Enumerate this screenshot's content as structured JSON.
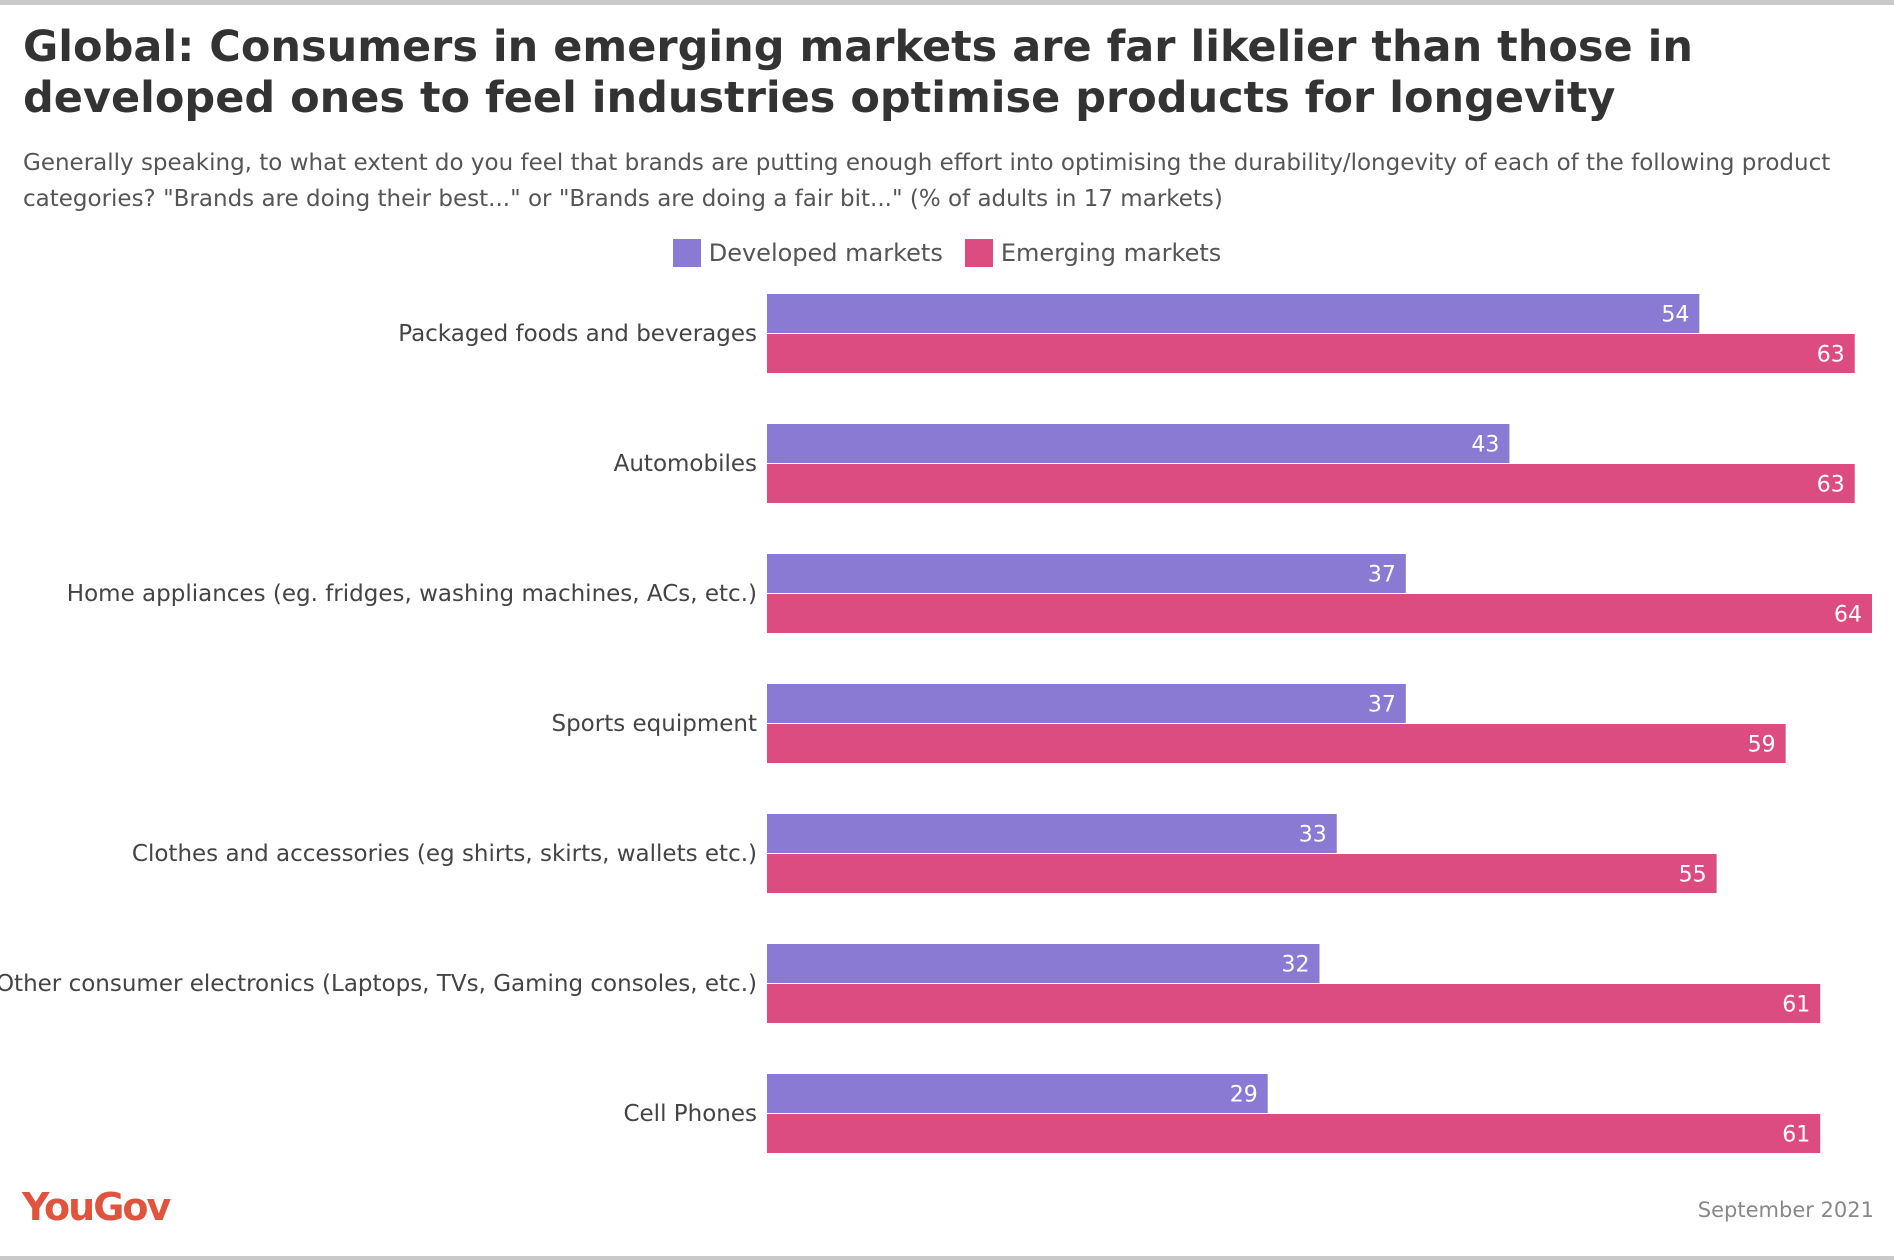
{
  "colors": {
    "developed": "#8A7AD4",
    "emerging": "#DC4C80",
    "logo": "#E0533D"
  },
  "header": {
    "title": "Global: Consumers in emerging markets are far likelier than those in developed ones to feel industries optimise products for longevity",
    "subtitle": "Generally speaking, to what extent do you feel that brands are putting enough effort into optimising the durability/longevity of each of the following product categories? \"Brands are doing their best...\" or \"Brands are doing a fair bit...\" (% of adults in 17 markets)"
  },
  "legend": {
    "developed_label": "Developed markets",
    "emerging_label": "Emerging markets"
  },
  "footer": {
    "logo_text": "YouGov",
    "date": "September 2021"
  },
  "chart_data": {
    "type": "bar",
    "orientation": "horizontal",
    "categories": [
      "Packaged foods and beverages",
      "Automobiles",
      "Home appliances (eg. fridges, washing machines, ACs, etc.)",
      "Sports equipment",
      "Clothes and accessories (eg shirts, skirts, wallets etc.)",
      "Other consumer electronics (Laptops, TVs, Gaming consoles, etc.)",
      "Cell Phones"
    ],
    "series": [
      {
        "name": "Developed markets",
        "values": [
          54,
          43,
          37,
          37,
          33,
          32,
          29
        ]
      },
      {
        "name": "Emerging markets",
        "values": [
          63,
          63,
          64,
          59,
          55,
          61,
          61
        ]
      }
    ],
    "xlim": [
      0,
      64
    ],
    "legend_position": "top-center",
    "grid": false,
    "data_labels": true
  }
}
